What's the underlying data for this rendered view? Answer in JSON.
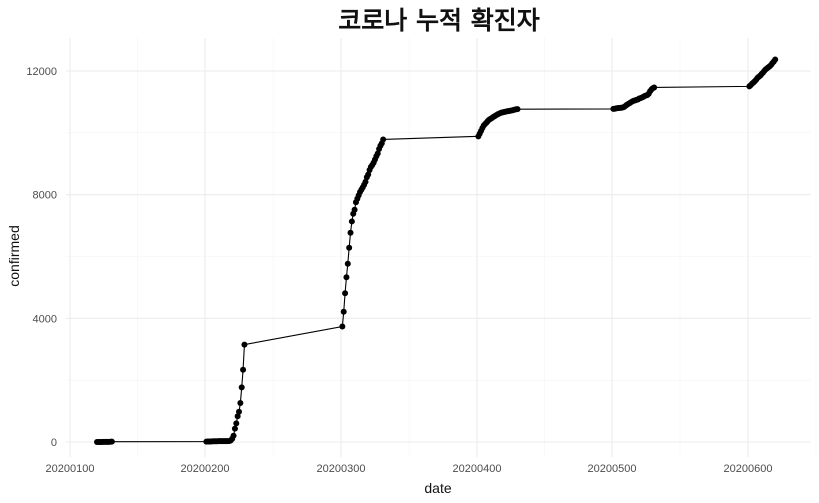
{
  "chart_data": {
    "type": "line",
    "title": "코로나 누적 확진자",
    "xlabel": "date",
    "ylabel": "confirmed",
    "xlim": [
      20200120,
      20200620
    ],
    "ylim": [
      0,
      12400
    ],
    "x_ticks": [
      "20200100",
      "20200200",
      "20200300",
      "20200400",
      "20200500",
      "20200600"
    ],
    "x_tick_values": [
      20200100,
      20200200,
      20200300,
      20200400,
      20200500,
      20200600
    ],
    "y_ticks": [
      "0",
      "4000",
      "8000",
      "12000"
    ],
    "y_tick_values": [
      0,
      4000,
      8000,
      12000
    ],
    "grid": true,
    "series": [
      {
        "points": [
          [
            20200120,
            1
          ],
          [
            20200121,
            1
          ],
          [
            20200122,
            1
          ],
          [
            20200123,
            1
          ],
          [
            20200124,
            2
          ],
          [
            20200125,
            3
          ],
          [
            20200126,
            3
          ],
          [
            20200127,
            4
          ],
          [
            20200128,
            4
          ],
          [
            20200129,
            4
          ],
          [
            20200130,
            6
          ],
          [
            20200131,
            11
          ],
          [
            20200201,
            12
          ],
          [
            20200202,
            15
          ],
          [
            20200203,
            15
          ],
          [
            20200204,
            16
          ],
          [
            20200205,
            19
          ],
          [
            20200206,
            23
          ],
          [
            20200207,
            24
          ],
          [
            20200208,
            24
          ],
          [
            20200209,
            25
          ],
          [
            20200210,
            27
          ],
          [
            20200211,
            28
          ],
          [
            20200212,
            28
          ],
          [
            20200213,
            28
          ],
          [
            20200214,
            28
          ],
          [
            20200215,
            28
          ],
          [
            20200216,
            29
          ],
          [
            20200217,
            30
          ],
          [
            20200218,
            31
          ],
          [
            20200219,
            51
          ],
          [
            20200220,
            104
          ],
          [
            20200221,
            204
          ],
          [
            20200222,
            433
          ],
          [
            20200223,
            602
          ],
          [
            20200224,
            833
          ],
          [
            20200225,
            977
          ],
          [
            20200226,
            1261
          ],
          [
            20200227,
            1766
          ],
          [
            20200228,
            2337
          ],
          [
            20200229,
            3150
          ],
          [
            20200301,
            3736
          ],
          [
            20200302,
            4212
          ],
          [
            20200303,
            4812
          ],
          [
            20200304,
            5328
          ],
          [
            20200305,
            5766
          ],
          [
            20200306,
            6284
          ],
          [
            20200307,
            6767
          ],
          [
            20200308,
            7134
          ],
          [
            20200309,
            7382
          ],
          [
            20200310,
            7513
          ],
          [
            20200311,
            7755
          ],
          [
            20200312,
            7869
          ],
          [
            20200313,
            7979
          ],
          [
            20200314,
            8086
          ],
          [
            20200315,
            8162
          ],
          [
            20200316,
            8236
          ],
          [
            20200317,
            8320
          ],
          [
            20200318,
            8413
          ],
          [
            20200319,
            8565
          ],
          [
            20200320,
            8652
          ],
          [
            20200321,
            8799
          ],
          [
            20200322,
            8897
          ],
          [
            20200323,
            8961
          ],
          [
            20200324,
            9037
          ],
          [
            20200325,
            9137
          ],
          [
            20200326,
            9241
          ],
          [
            20200327,
            9332
          ],
          [
            20200328,
            9478
          ],
          [
            20200329,
            9583
          ],
          [
            20200330,
            9661
          ],
          [
            20200331,
            9786
          ],
          [
            20200401,
            9887
          ],
          [
            20200402,
            9976
          ],
          [
            20200403,
            10062
          ],
          [
            20200404,
            10156
          ],
          [
            20200405,
            10237
          ],
          [
            20200406,
            10284
          ],
          [
            20200407,
            10331
          ],
          [
            20200408,
            10384
          ],
          [
            20200409,
            10423
          ],
          [
            20200410,
            10450
          ],
          [
            20200411,
            10480
          ],
          [
            20200412,
            10512
          ],
          [
            20200413,
            10537
          ],
          [
            20200414,
            10564
          ],
          [
            20200415,
            10591
          ],
          [
            20200416,
            10613
          ],
          [
            20200417,
            10635
          ],
          [
            20200418,
            10653
          ],
          [
            20200419,
            10661
          ],
          [
            20200420,
            10674
          ],
          [
            20200421,
            10683
          ],
          [
            20200422,
            10694
          ],
          [
            20200423,
            10702
          ],
          [
            20200424,
            10708
          ],
          [
            20200425,
            10718
          ],
          [
            20200426,
            10728
          ],
          [
            20200427,
            10738
          ],
          [
            20200428,
            10752
          ],
          [
            20200429,
            10761
          ],
          [
            20200430,
            10765
          ],
          [
            20200501,
            10774
          ],
          [
            20200502,
            10780
          ],
          [
            20200503,
            10793
          ],
          [
            20200504,
            10801
          ],
          [
            20200505,
            10804
          ],
          [
            20200506,
            10806
          ],
          [
            20200507,
            10810
          ],
          [
            20200508,
            10822
          ],
          [
            20200509,
            10840
          ],
          [
            20200510,
            10874
          ],
          [
            20200511,
            10909
          ],
          [
            20200512,
            10936
          ],
          [
            20200513,
            10962
          ],
          [
            20200514,
            10991
          ],
          [
            20200515,
            11018
          ],
          [
            20200516,
            11037
          ],
          [
            20200517,
            11050
          ],
          [
            20200518,
            11065
          ],
          [
            20200519,
            11078
          ],
          [
            20200520,
            11110
          ],
          [
            20200521,
            11122
          ],
          [
            20200522,
            11142
          ],
          [
            20200523,
            11165
          ],
          [
            20200524,
            11190
          ],
          [
            20200525,
            11206
          ],
          [
            20200526,
            11225
          ],
          [
            20200527,
            11265
          ],
          [
            20200528,
            11344
          ],
          [
            20200529,
            11402
          ],
          [
            20200530,
            11441
          ],
          [
            20200531,
            11468
          ],
          [
            20200601,
            11503
          ],
          [
            20200602,
            11541
          ],
          [
            20200603,
            11590
          ],
          [
            20200604,
            11629
          ],
          [
            20200605,
            11668
          ],
          [
            20200606,
            11719
          ],
          [
            20200607,
            11776
          ],
          [
            20200608,
            11814
          ],
          [
            20200609,
            11852
          ],
          [
            20200610,
            11902
          ],
          [
            20200611,
            11947
          ],
          [
            20200612,
            12003
          ],
          [
            20200613,
            12051
          ],
          [
            20200614,
            12085
          ],
          [
            20200615,
            12121
          ],
          [
            20200616,
            12155
          ],
          [
            20200617,
            12198
          ],
          [
            20200618,
            12257
          ],
          [
            20200619,
            12306
          ],
          [
            20200620,
            12373
          ]
        ]
      }
    ]
  }
}
